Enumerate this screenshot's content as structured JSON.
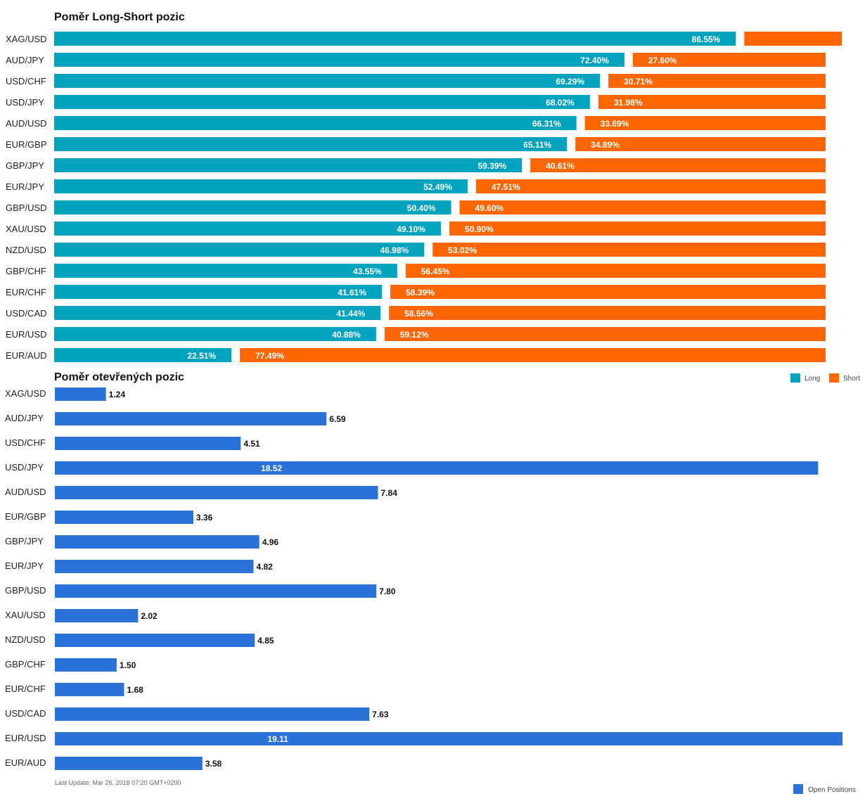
{
  "colors": {
    "long": "#00A3BE",
    "short": "#FF6600",
    "open": "#2B72D8"
  },
  "chart_data": [
    {
      "type": "bar",
      "stacked": true,
      "orientation": "horizontal",
      "title": "Poměr Long-Short pozic",
      "categories": [
        "XAG/USD",
        "AUD/JPY",
        "USD/CHF",
        "USD/JPY",
        "AUD/USD",
        "EUR/GBP",
        "GBP/JPY",
        "EUR/JPY",
        "GBP/USD",
        "XAU/USD",
        "NZD/USD",
        "GBP/CHF",
        "EUR/CHF",
        "USD/CAD",
        "EUR/USD",
        "EUR/AUD"
      ],
      "series": [
        {
          "name": "Long",
          "values": [
            86.55,
            72.4,
            69.29,
            68.02,
            66.31,
            65.11,
            59.39,
            52.49,
            50.4,
            49.1,
            46.98,
            43.55,
            41.61,
            41.44,
            40.88,
            22.51
          ]
        },
        {
          "name": "Short",
          "values": [
            13.45,
            27.6,
            30.71,
            31.98,
            33.69,
            34.89,
            40.61,
            47.51,
            49.6,
            50.9,
            53.02,
            56.45,
            58.39,
            58.56,
            59.12,
            77.49
          ]
        }
      ],
      "labels": {
        "long": [
          "86.55%",
          "72.40%",
          "69.29%",
          "68.02%",
          "66.31%",
          "65.11%",
          "59.39%",
          "52.49%",
          "50.40%",
          "49.10%",
          "46.98%",
          "43.55%",
          "41.61%",
          "41.44%",
          "40.88%",
          "22.51%"
        ],
        "short": [
          "",
          "27.60%",
          "30.71%",
          "31.98%",
          "33.69%",
          "34.89%",
          "40.61%",
          "47.51%",
          "49.60%",
          "50.90%",
          "53.02%",
          "56.45%",
          "58.39%",
          "58.56%",
          "59.12%",
          "77.49%"
        ]
      },
      "xlim": [
        0,
        100
      ],
      "legend": {
        "placement": "bottom-right",
        "items": [
          "Long",
          "Short"
        ]
      },
      "grid": false
    },
    {
      "type": "bar",
      "orientation": "horizontal",
      "title": "Poměr otevřených pozic",
      "categories": [
        "XAG/USD",
        "AUD/JPY",
        "USD/CHF",
        "USD/JPY",
        "AUD/USD",
        "EUR/GBP",
        "GBP/JPY",
        "EUR/JPY",
        "GBP/USD",
        "XAU/USD",
        "NZD/USD",
        "GBP/CHF",
        "EUR/CHF",
        "USD/CAD",
        "EUR/USD",
        "EUR/AUD"
      ],
      "series": [
        {
          "name": "Open Positions",
          "values": [
            1.24,
            6.59,
            4.51,
            18.52,
            7.84,
            3.36,
            4.96,
            4.82,
            7.8,
            2.02,
            4.85,
            1.5,
            1.68,
            7.63,
            19.11,
            3.58
          ]
        }
      ],
      "labels": [
        "1.24",
        "6.59",
        "4.51",
        "18.52",
        "7.84",
        "3.36",
        "4.96",
        "4.82",
        "7.80",
        "2.02",
        "4.85",
        "1.50",
        "1.68",
        "7.63",
        "19.11",
        "3.58"
      ],
      "xlim": [
        0,
        19.11
      ],
      "legend": {
        "placement": "bottom-right",
        "items": [
          "Open Positions"
        ]
      },
      "grid": false
    }
  ],
  "footer": {
    "last_update": "Last Update: Mar 26, 2018 07:20 GMT+0200"
  }
}
